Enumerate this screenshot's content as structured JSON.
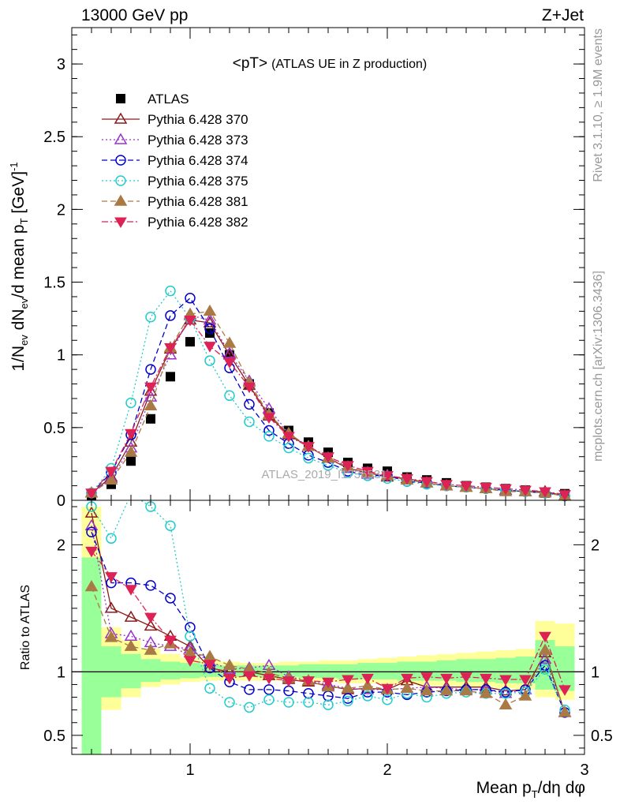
{
  "header": {
    "left": "13000 GeV pp",
    "right": "Z+Jet"
  },
  "side_labels": {
    "rivet": "Rivet 3.1.10, ≥ 1.9M events",
    "mcplots": "mcplots.cern.ch [arXiv:1306.3436]"
  },
  "watermark": "ATLAS_2019_I1736531",
  "chart_data": [
    {
      "type": "scatter",
      "title_main": "<pT>",
      "title_sub": "(ATLAS UE in Z production)",
      "ylabel": "1/N_ev dN_ev/d mean p_T [GeV]^-1",
      "ylabel_parts": [
        "1/N",
        "ev",
        " dN",
        "ev",
        "/d mean p",
        "T",
        " [GeV]",
        "-1"
      ],
      "xlim": [
        0.4,
        3.0
      ],
      "ylim": [
        0,
        3.25
      ],
      "yticks": [
        0,
        0.5,
        1,
        1.5,
        2,
        2.5,
        3
      ],
      "ytick_labels": [
        "0",
        "0.5",
        "1",
        "1.5",
        "2",
        "2.5",
        "3"
      ],
      "legend_position": "top-left",
      "x": [
        0.5,
        0.6,
        0.7,
        0.8,
        0.9,
        1.0,
        1.1,
        1.2,
        1.3,
        1.4,
        1.5,
        1.6,
        1.7,
        1.8,
        1.9,
        2.0,
        2.1,
        2.2,
        2.3,
        2.4,
        2.5,
        2.6,
        2.7,
        2.8,
        2.9
      ],
      "series": [
        {
          "name": "ATLAS",
          "color": "#000000",
          "marker": "square",
          "dash": "none",
          "values": [
            0.03,
            0.11,
            0.27,
            0.56,
            0.85,
            1.09,
            1.15,
            1.0,
            0.8,
            0.6,
            0.48,
            0.4,
            0.33,
            0.26,
            0.22,
            0.2,
            0.16,
            0.14,
            0.12,
            0.1,
            0.09,
            0.08,
            0.07,
            0.05,
            0.045
          ]
        },
        {
          "name": "Pythia 6.428 370",
          "color": "#8b1a1a",
          "marker": "triangle-open",
          "dash": "solid",
          "values": [
            0.05,
            0.16,
            0.4,
            0.75,
            1.04,
            1.24,
            1.22,
            1.0,
            0.79,
            0.58,
            0.45,
            0.37,
            0.29,
            0.22,
            0.19,
            0.16,
            0.15,
            0.12,
            0.1,
            0.09,
            0.08,
            0.07,
            0.06,
            0.06,
            0.03
          ]
        },
        {
          "name": "Pythia 6.428 373",
          "color": "#9932cc",
          "marker": "triangle-open",
          "dash": "dotted",
          "values": [
            0.05,
            0.15,
            0.36,
            0.71,
            1.0,
            1.27,
            1.24,
            1.01,
            0.82,
            0.63,
            0.46,
            0.37,
            0.29,
            0.22,
            0.18,
            0.17,
            0.14,
            0.12,
            0.1,
            0.09,
            0.08,
            0.07,
            0.06,
            0.05,
            0.03
          ]
        },
        {
          "name": "Pythia 6.428 374",
          "color": "#0000cc",
          "marker": "circle-open",
          "dash": "dashed",
          "values": [
            0.05,
            0.19,
            0.45,
            0.9,
            1.27,
            1.39,
            1.18,
            0.91,
            0.66,
            0.48,
            0.39,
            0.31,
            0.26,
            0.2,
            0.17,
            0.17,
            0.13,
            0.12,
            0.1,
            0.09,
            0.08,
            0.07,
            0.06,
            0.05,
            0.03
          ]
        },
        {
          "name": "Pythia 6.428 375",
          "color": "#22cccc",
          "marker": "circle-open",
          "dash": "dotted",
          "values": [
            0.05,
            0.22,
            0.67,
            1.26,
            1.44,
            1.25,
            0.96,
            0.72,
            0.54,
            0.44,
            0.36,
            0.29,
            0.24,
            0.19,
            0.17,
            0.15,
            0.13,
            0.11,
            0.1,
            0.09,
            0.08,
            0.07,
            0.06,
            0.05,
            0.03
          ]
        },
        {
          "name": "Pythia 6.428 381",
          "color": "#aa7a44",
          "marker": "triangle-filled",
          "dash": "dashed",
          "values": [
            0.05,
            0.14,
            0.33,
            0.65,
            1.05,
            1.28,
            1.3,
            1.08,
            0.81,
            0.59,
            0.46,
            0.37,
            0.29,
            0.23,
            0.19,
            0.17,
            0.14,
            0.12,
            0.1,
            0.09,
            0.08,
            0.06,
            0.06,
            0.05,
            0.03
          ]
        },
        {
          "name": "Pythia 6.428 382",
          "color": "#dd2255",
          "marker": "triangle-down-filled",
          "dash": "dashdot",
          "values": [
            0.05,
            0.2,
            0.46,
            0.78,
            1.05,
            1.24,
            1.06,
            0.95,
            0.78,
            0.57,
            0.44,
            0.37,
            0.3,
            0.24,
            0.2,
            0.17,
            0.15,
            0.13,
            0.11,
            0.1,
            0.09,
            0.08,
            0.07,
            0.06,
            0.04
          ]
        }
      ]
    },
    {
      "type": "scatter",
      "ylabel": "Ratio to ATLAS",
      "xlabel": "Mean p_T/dη dφ",
      "xlabel_parts": [
        "Mean p",
        "T",
        "/dη dφ"
      ],
      "xlim": [
        0.4,
        3.0
      ],
      "ylim": [
        0.35,
        2.35
      ],
      "xticks": [
        1,
        2,
        3
      ],
      "xtick_labels": [
        "1",
        "2",
        "3"
      ],
      "yticks": [
        0.5,
        1,
        2
      ],
      "ytick_labels": [
        "0.5",
        "1",
        "2"
      ],
      "reference_line": 1,
      "band_edges": [
        0.45,
        0.55,
        0.65,
        0.75,
        0.85,
        0.95,
        1.05,
        1.15,
        1.25,
        1.35,
        1.45,
        1.55,
        1.65,
        1.75,
        1.85,
        1.95,
        2.05,
        2.15,
        2.25,
        2.35,
        2.45,
        2.55,
        2.65,
        2.75,
        2.85,
        2.95
      ],
      "band_yellow": [
        [
          0.35,
          2.3
        ],
        [
          0.7,
          1.35
        ],
        [
          0.8,
          1.25
        ],
        [
          0.88,
          1.18
        ],
        [
          0.9,
          1.14
        ],
        [
          0.92,
          1.11
        ],
        [
          0.93,
          1.09
        ],
        [
          0.93,
          1.08
        ],
        [
          0.93,
          1.07
        ],
        [
          0.93,
          1.07
        ],
        [
          0.93,
          1.08
        ],
        [
          0.92,
          1.08
        ],
        [
          0.92,
          1.09
        ],
        [
          0.91,
          1.09
        ],
        [
          0.91,
          1.1
        ],
        [
          0.9,
          1.11
        ],
        [
          0.9,
          1.12
        ],
        [
          0.89,
          1.13
        ],
        [
          0.89,
          1.14
        ],
        [
          0.88,
          1.15
        ],
        [
          0.88,
          1.16
        ],
        [
          0.87,
          1.17
        ],
        [
          0.86,
          1.18
        ],
        [
          0.8,
          1.4
        ],
        [
          0.78,
          1.38
        ]
      ],
      "band_green": [
        [
          0.35,
          1.9
        ],
        [
          0.8,
          1.2
        ],
        [
          0.87,
          1.14
        ],
        [
          0.92,
          1.1
        ],
        [
          0.94,
          1.08
        ],
        [
          0.95,
          1.07
        ],
        [
          0.96,
          1.06
        ],
        [
          0.96,
          1.05
        ],
        [
          0.96,
          1.05
        ],
        [
          0.96,
          1.05
        ],
        [
          0.96,
          1.05
        ],
        [
          0.95,
          1.06
        ],
        [
          0.95,
          1.06
        ],
        [
          0.94,
          1.06
        ],
        [
          0.94,
          1.07
        ],
        [
          0.94,
          1.07
        ],
        [
          0.93,
          1.08
        ],
        [
          0.93,
          1.08
        ],
        [
          0.93,
          1.09
        ],
        [
          0.92,
          1.1
        ],
        [
          0.92,
          1.1
        ],
        [
          0.91,
          1.11
        ],
        [
          0.91,
          1.12
        ],
        [
          0.86,
          1.25
        ],
        [
          0.85,
          1.2
        ]
      ],
      "x": [
        0.5,
        0.6,
        0.7,
        0.8,
        0.9,
        1.0,
        1.1,
        1.2,
        1.3,
        1.4,
        1.5,
        1.6,
        1.7,
        1.8,
        1.9,
        2.0,
        2.1,
        2.2,
        2.3,
        2.4,
        2.5,
        2.6,
        2.7,
        2.8,
        2.9
      ],
      "series": [
        {
          "name": "Pythia 6.428 370",
          "color": "#8b1a1a",
          "marker": "triangle-open",
          "dash": "solid",
          "values": [
            2.25,
            1.5,
            1.43,
            1.36,
            1.28,
            1.2,
            1.03,
            1.0,
            1.0,
            0.97,
            0.94,
            0.92,
            0.89,
            0.86,
            0.87,
            0.86,
            0.93,
            0.88,
            0.88,
            0.88,
            0.88,
            0.85,
            0.86,
            1.15,
            0.68
          ]
        },
        {
          "name": "Pythia 6.428 373",
          "color": "#9932cc",
          "marker": "triangle-open",
          "dash": "dotted",
          "values": [
            2.15,
            1.3,
            1.28,
            1.23,
            1.2,
            1.18,
            1.08,
            1.02,
            1.03,
            1.05,
            0.96,
            0.93,
            0.9,
            0.87,
            0.86,
            0.86,
            0.87,
            0.88,
            0.87,
            0.86,
            0.86,
            0.83,
            0.86,
            1.1,
            0.68
          ]
        },
        {
          "name": "Pythia 6.428 374",
          "color": "#0000cc",
          "marker": "circle-open",
          "dash": "dashed",
          "values": [
            2.1,
            1.7,
            1.7,
            1.68,
            1.58,
            1.35,
            1.03,
            0.92,
            0.86,
            0.86,
            0.85,
            0.83,
            0.81,
            0.79,
            0.84,
            0.84,
            0.82,
            0.84,
            0.85,
            0.86,
            0.86,
            0.84,
            0.86,
            1.05,
            0.68
          ]
        },
        {
          "name": "Pythia 6.428 375",
          "color": "#22cccc",
          "marker": "circle-open",
          "dash": "dotted",
          "values": [
            2.3,
            2.05,
            2.4,
            2.3,
            2.15,
            1.28,
            0.87,
            0.76,
            0.72,
            0.78,
            0.76,
            0.76,
            0.74,
            0.77,
            0.81,
            0.78,
            0.83,
            0.8,
            0.83,
            0.84,
            0.83,
            0.83,
            0.84,
            1.02,
            0.7
          ]
        },
        {
          "name": "Pythia 6.428 381",
          "color": "#aa7a44",
          "marker": "triangle-filled",
          "dash": "dashed",
          "values": [
            1.67,
            1.27,
            1.2,
            1.17,
            1.22,
            1.15,
            1.12,
            1.05,
            1.02,
            0.99,
            0.95,
            0.93,
            0.88,
            0.87,
            0.89,
            0.86,
            0.87,
            0.85,
            0.85,
            0.85,
            0.83,
            0.74,
            0.81,
            1.17,
            0.68
          ]
        },
        {
          "name": "Pythia 6.428 382",
          "color": "#dd2255",
          "marker": "triangle-down-filled",
          "dash": "dashdot",
          "values": [
            1.95,
            1.75,
            1.65,
            1.43,
            1.25,
            1.09,
            1.06,
            0.95,
            0.97,
            0.95,
            0.93,
            0.93,
            0.92,
            0.94,
            0.95,
            0.87,
            0.95,
            0.96,
            0.95,
            0.96,
            0.95,
            0.94,
            0.94,
            1.28,
            0.86
          ]
        }
      ]
    }
  ]
}
